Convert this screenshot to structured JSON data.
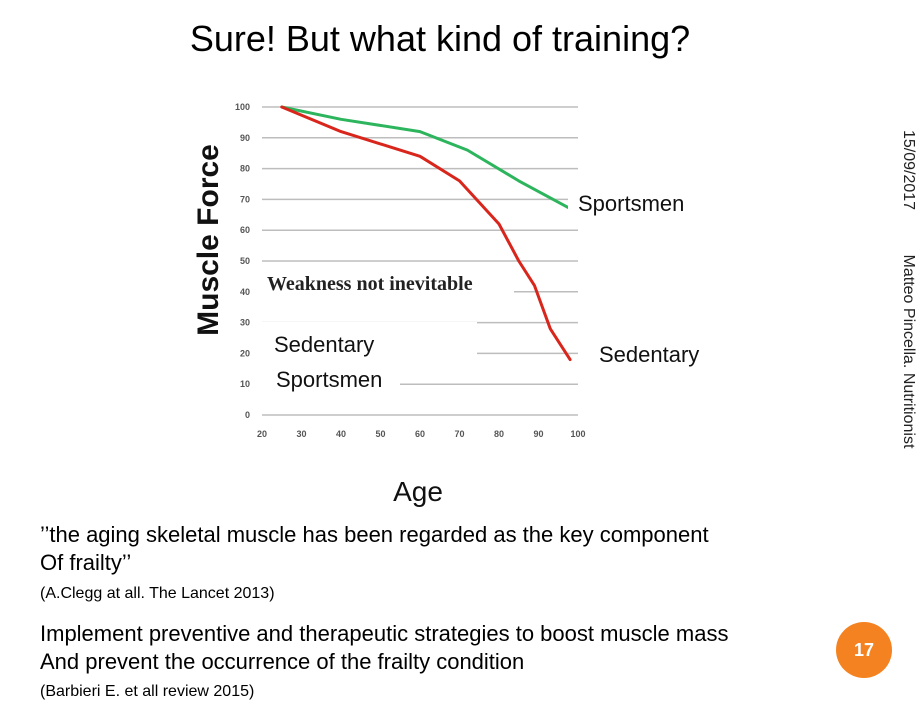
{
  "slide": {
    "title": "Sure! But what kind of training?",
    "date": "15/09/2017",
    "author": "Matteo Pincella. Nutritionist",
    "quote1_line1": "’’the aging skeletal muscle has been regarded as the key component",
    "quote1_line2": "Of frailty’’",
    "cite1": "(A.Clegg at all. The Lancet 2013)",
    "quote2_line1": "Implement preventive and therapeutic strategies to boost muscle mass",
    "quote2_line2": "And prevent the occurrence of the frailty condition",
    "cite2": "(Barbieri E. et all review 2015)",
    "page_number": "17"
  },
  "chart_data": {
    "type": "line",
    "xlabel": "Age",
    "ylabel": "Muscle Force",
    "xlim": [
      20,
      100
    ],
    "ylim": [
      0,
      100
    ],
    "xticks": [
      20,
      30,
      40,
      50,
      60,
      70,
      80,
      90,
      100
    ],
    "yticks": [
      0,
      10,
      20,
      30,
      40,
      50,
      60,
      70,
      80,
      90,
      100
    ],
    "grid": true,
    "annotation": "Weakness not inevitable",
    "legend_labels": [
      "Sedentary",
      "Sportsmen"
    ],
    "series": [
      {
        "name": "Sportsmen",
        "color": "#2db55d",
        "x": [
          25,
          40,
          60,
          72,
          85,
          98
        ],
        "y": [
          100,
          96,
          92,
          86,
          76,
          67
        ]
      },
      {
        "name": "Sedentary",
        "color": "#d9261c",
        "x": [
          25,
          40,
          60,
          70,
          80,
          85,
          89,
          93,
          98
        ],
        "y": [
          100,
          92,
          84,
          76,
          62,
          50,
          42,
          28,
          18
        ]
      }
    ]
  }
}
